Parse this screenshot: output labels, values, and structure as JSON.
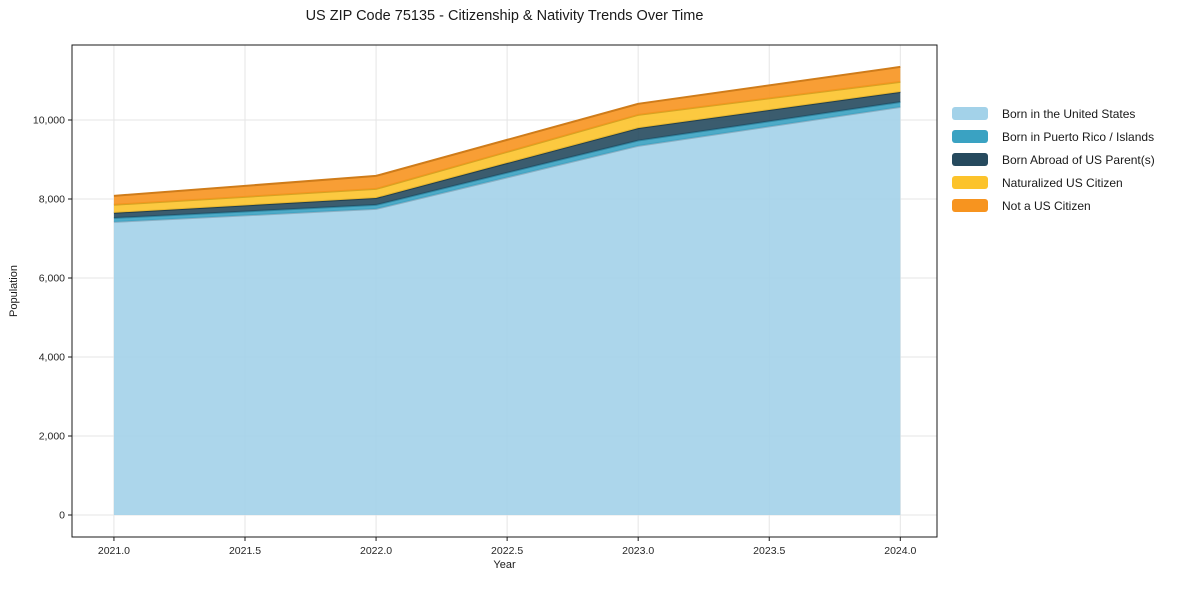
{
  "chart_data": {
    "type": "area",
    "stacked": true,
    "title": "US ZIP Code 75135 - Citizenship & Nativity Trends Over Time",
    "xlabel": "Year",
    "ylabel": "Population",
    "x": [
      2021,
      2022,
      2023,
      2024
    ],
    "series": [
      {
        "name": "Born in the United States",
        "color": "#A3D2E9",
        "values": [
          7420,
          7750,
          9345,
          10330
        ]
      },
      {
        "name": "Born in Puerto Rico / Islands",
        "color": "#3AA2C2",
        "values": [
          100,
          100,
          135,
          125
        ]
      },
      {
        "name": "Born Abroad of US Parent(s)",
        "color": "#264A5E",
        "values": [
          130,
          175,
          315,
          255
        ]
      },
      {
        "name": "Naturalized US Citizen",
        "color": "#FCC32B",
        "values": [
          205,
          230,
          335,
          255
        ]
      },
      {
        "name": "Not a US Citizen",
        "color": "#F7941F",
        "values": [
          225,
          330,
          280,
          380
        ]
      }
    ],
    "stack_totals": [
      8080,
      8585,
      10410,
      11345
    ],
    "xticks": [
      2021.0,
      2021.5,
      2022.0,
      2022.5,
      2023.0,
      2023.5,
      2024.0
    ],
    "yticks": [
      0,
      2000,
      4000,
      6000,
      8000,
      10000
    ],
    "xlim": [
      2020.84,
      2024.14
    ],
    "ylim": [
      -557,
      11899
    ],
    "grid": true,
    "grid_color": "#e5e5e5",
    "spine_color": "#1a1a1a",
    "legend_position": "right",
    "fill_opacity": 0.9
  }
}
